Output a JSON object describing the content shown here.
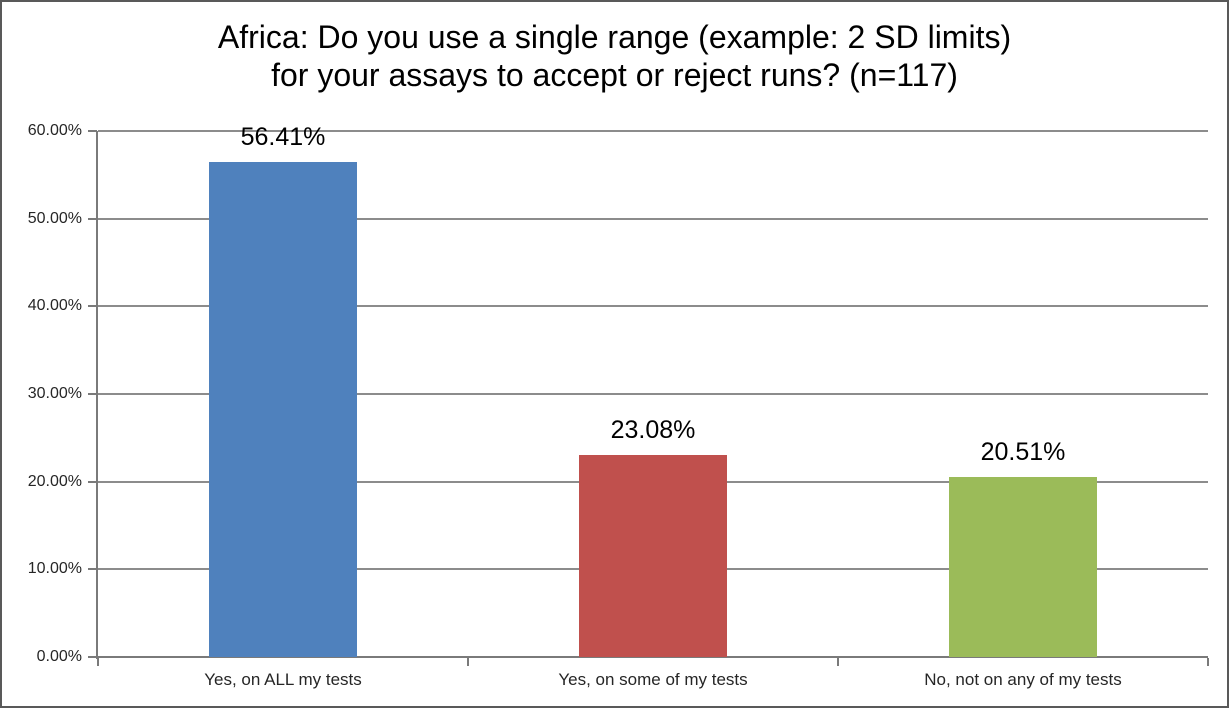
{
  "title": {
    "line1": "Africa: Do you use a single range (example: 2 SD limits)",
    "line2": "for your assays to accept or reject runs? (n=117)"
  },
  "chart_data": {
    "type": "bar",
    "title": "Africa: Do you use a single range (example: 2 SD limits) for your assays to accept or reject runs? (n=117)",
    "sample_size_note": "n=117",
    "categories": [
      "Yes, on ALL my tests",
      "Yes, on some of my tests",
      "No, not on any of my tests"
    ],
    "values": [
      56.41,
      23.08,
      20.51
    ],
    "value_labels": [
      "56.41%",
      "23.08%",
      "20.51%"
    ],
    "bar_colors": [
      "#4f81bd",
      "#c0504d",
      "#9bbb59"
    ],
    "ylim": [
      0,
      60
    ],
    "y_tick_interval": 10,
    "y_tick_labels": [
      "0.00%",
      "10.00%",
      "20.00%",
      "30.00%",
      "40.00%",
      "50.00%",
      "60.00%"
    ],
    "xlabel": "",
    "ylabel": "",
    "grid": true,
    "legend": false
  }
}
